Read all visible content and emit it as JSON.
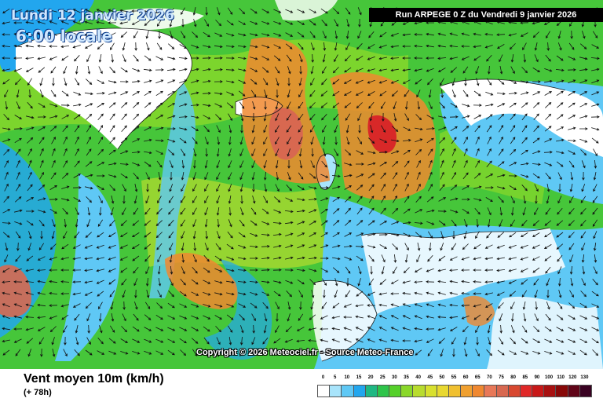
{
  "header": {
    "date": "Lundi 12 janvier 2026",
    "time": "6:00 locale",
    "run": "Run ARPEGE 0 Z du Vendredi 9 janvier 2026"
  },
  "map": {
    "copyright": "Copyright © 2026 Meteociel.fr - Source Meteo-France"
  },
  "footer": {
    "title": "Vent moyen 10m (km/h)",
    "subtitle": "(+ 78h)"
  },
  "legend": {
    "values": [
      "0",
      "5",
      "10",
      "15",
      "20",
      "25",
      "30",
      "35",
      "40",
      "45",
      "50",
      "55",
      "60",
      "65",
      "70",
      "75",
      "80",
      "85",
      "90",
      "100",
      "110",
      "120",
      "130"
    ],
    "colors": [
      "#ffffff",
      "#a8e4fb",
      "#5fc8f5",
      "#22a6ee",
      "#1fb883",
      "#2ec44a",
      "#55d02a",
      "#8ad82a",
      "#b8dc2e",
      "#d8e02e",
      "#e8d830",
      "#f0c030",
      "#f0a030",
      "#f08830",
      "#e87858",
      "#d86850",
      "#d84830",
      "#e02828",
      "#c81818",
      "#a81010",
      "#880808",
      "#600418",
      "#3a0222"
    ]
  },
  "colors": {
    "sea_calm": "#3aa0ee",
    "sea_moderate": "#3cc23a",
    "sea_strong": "#f08830",
    "land": "#ffffff",
    "title_box": "#000000"
  }
}
